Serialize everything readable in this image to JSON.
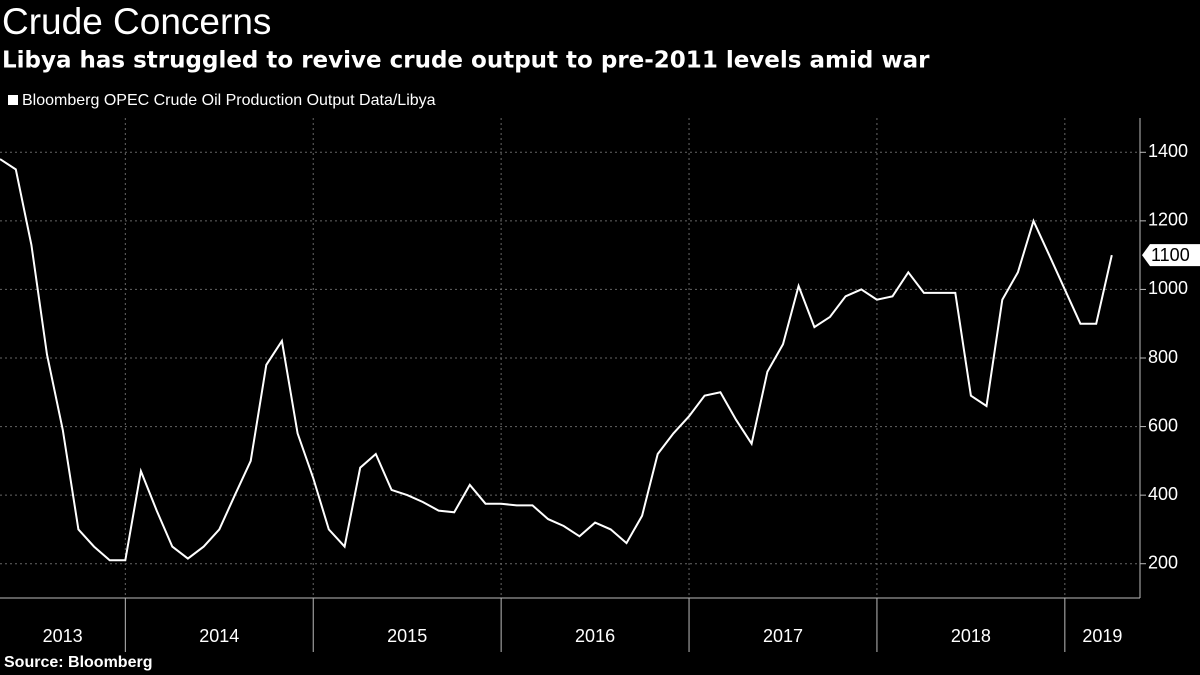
{
  "chart_data": {
    "type": "line",
    "title": "Crude Concerns",
    "subtitle": "Libya has struggled to revive crude output to pre-2011 levels amid war",
    "source": "Source: Bloomberg",
    "x": [
      2013.333,
      2013.417,
      2013.5,
      2013.583,
      2013.667,
      2013.75,
      2013.833,
      2013.917,
      2014.0,
      2014.083,
      2014.167,
      2014.25,
      2014.333,
      2014.417,
      2014.5,
      2014.583,
      2014.667,
      2014.75,
      2014.833,
      2014.917,
      2015.0,
      2015.083,
      2015.167,
      2015.25,
      2015.333,
      2015.417,
      2015.5,
      2015.583,
      2015.667,
      2015.75,
      2015.833,
      2015.917,
      2016.0,
      2016.083,
      2016.167,
      2016.25,
      2016.333,
      2016.417,
      2016.5,
      2016.583,
      2016.667,
      2016.75,
      2016.833,
      2016.917,
      2017.0,
      2017.083,
      2017.167,
      2017.25,
      2017.333,
      2017.417,
      2017.5,
      2017.583,
      2017.667,
      2017.75,
      2017.833,
      2017.917,
      2018.0,
      2018.083,
      2018.167,
      2018.25,
      2018.333,
      2018.417,
      2018.5,
      2018.583,
      2018.667,
      2018.75,
      2018.833,
      2018.917,
      2019.0,
      2019.083,
      2019.167,
      2019.25
    ],
    "series": [
      {
        "name": "Bloomberg OPEC Crude Oil Production Output Data/Libya",
        "color": "#ffffff",
        "values": [
          1380,
          1350,
          1130,
          810,
          590,
          300,
          250,
          210,
          210,
          470,
          355,
          250,
          215,
          250,
          300,
          400,
          500,
          780,
          850,
          580,
          450,
          300,
          250,
          480,
          520,
          415,
          400,
          380,
          355,
          350,
          430,
          375,
          375,
          370,
          370,
          330,
          310,
          280,
          320,
          300,
          260,
          340,
          520,
          580,
          630,
          690,
          700,
          620,
          550,
          760,
          840,
          1010,
          890,
          920,
          980,
          1000,
          970,
          980,
          1050,
          990,
          990,
          990,
          690,
          660,
          970,
          1050,
          1200,
          1100,
          1000,
          900,
          900,
          1100
        ]
      }
    ],
    "xlim": [
      2013.333,
      2019.4
    ],
    "xticks": [
      2013,
      2014,
      2015,
      2016,
      2017,
      2018,
      2019
    ],
    "ylim": [
      100,
      1500
    ],
    "yticks": [
      200,
      400,
      600,
      800,
      1000,
      1200,
      1400
    ],
    "grid": true
  }
}
